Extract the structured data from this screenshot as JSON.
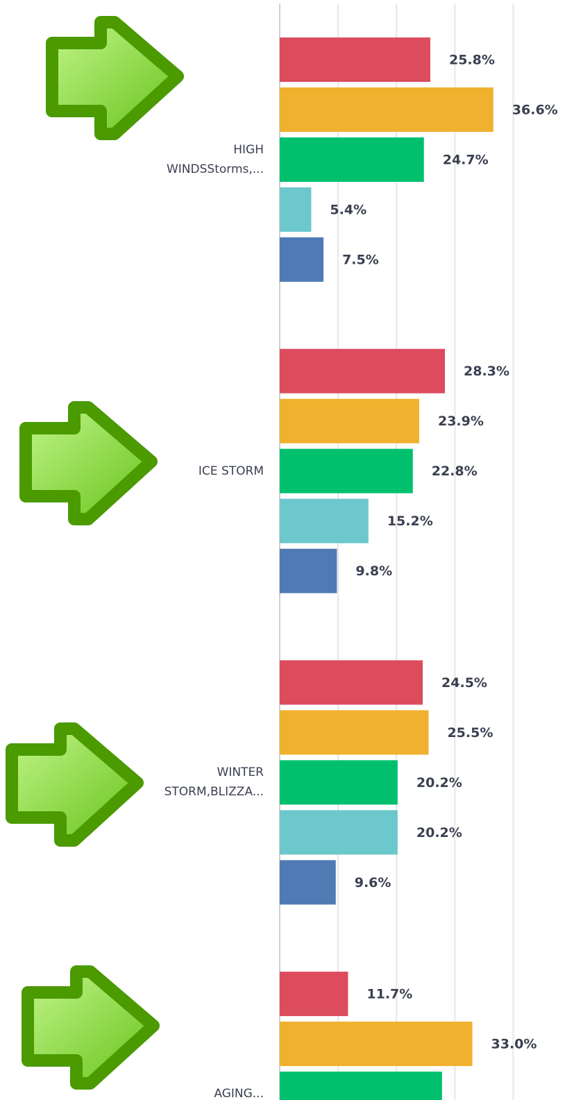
{
  "chart_data": {
    "type": "bar",
    "orientation": "horizontal",
    "categories": [
      "HIGH WINDSStorms,...",
      "ICE STORM",
      "WINTER STORM,BLIZZA...",
      "AGING..."
    ],
    "series": [
      {
        "color": "#dc4c5e",
        "values": [
          25.8,
          28.3,
          24.5,
          11.7
        ],
        "value_labels": [
          "25.8%",
          "28.3%",
          "24.5%",
          "11.7%"
        ]
      },
      {
        "color": "#f0b12e",
        "values": [
          36.6,
          23.9,
          25.5,
          33.0
        ],
        "value_labels": [
          "36.6%",
          "23.9%",
          "25.5%",
          "33.0%"
        ]
      },
      {
        "color": "#00c06e",
        "values": [
          24.7,
          22.8,
          20.2,
          27.8
        ],
        "value_labels": [
          "24.7%",
          "22.8%",
          "20.2%",
          null
        ]
      },
      {
        "color": "#6cc8cc",
        "values": [
          5.4,
          15.2,
          20.2,
          null
        ],
        "value_labels": [
          "5.4%",
          "15.2%",
          "20.2%",
          null
        ]
      },
      {
        "color": "#4f7bb5",
        "values": [
          7.5,
          9.8,
          9.6,
          null
        ],
        "value_labels": [
          "7.5%",
          "9.8%",
          "9.6%",
          null
        ]
      }
    ],
    "xlim": [
      0,
      48
    ],
    "xticks": [
      0,
      10,
      20,
      30,
      40
    ],
    "grid": true
  }
}
